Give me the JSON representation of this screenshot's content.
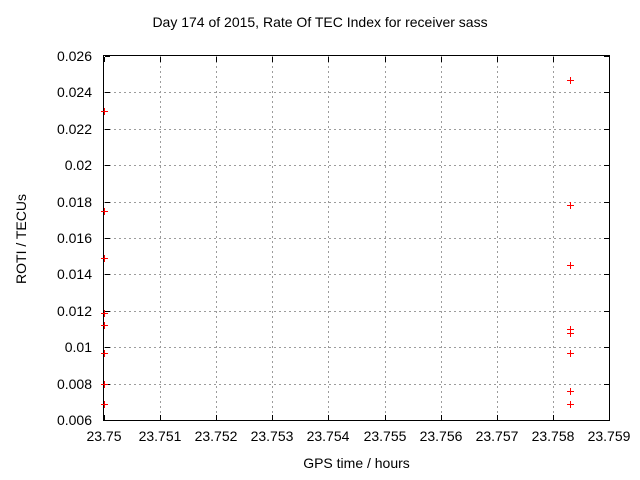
{
  "title": "Day 174 of 2015, Rate Of TEC Index for receiver sass",
  "axes": {
    "xlabel": "GPS time / hours",
    "ylabel": "ROTI / TECUs"
  },
  "chart_data": {
    "type": "scatter",
    "title": "Day 174 of 2015, Rate Of TEC Index for receiver sass",
    "xlabel": "GPS time / hours",
    "ylabel": "ROTI / TECUs",
    "xlim": [
      23.75,
      23.759
    ],
    "ylim": [
      0.006,
      0.026
    ],
    "x_tick_values": [
      23.75,
      23.751,
      23.752,
      23.753,
      23.754,
      23.755,
      23.756,
      23.757,
      23.758,
      23.759
    ],
    "x_tick_labels": [
      "23.75",
      "23.751",
      "23.752",
      "23.753",
      "23.754",
      "23.755",
      "23.756",
      "23.757",
      "23.758",
      "23.759"
    ],
    "y_tick_values": [
      0.006,
      0.008,
      0.01,
      0.012,
      0.014,
      0.016,
      0.018,
      0.02,
      0.022,
      0.024,
      0.026
    ],
    "y_tick_labels": [
      "0.006",
      "0.008",
      "0.01",
      "0.012",
      "0.014",
      "0.016",
      "0.018",
      "0.02",
      "0.022",
      "0.024",
      "0.026"
    ],
    "grid": true,
    "legend": "none",
    "marker": "plus",
    "marker_color": "#ff0000",
    "series": [
      {
        "name": "ROTI",
        "points": [
          [
            23.75,
            0.023
          ],
          [
            23.75,
            0.0175
          ],
          [
            23.75,
            0.0149
          ],
          [
            23.75,
            0.0119
          ],
          [
            23.75,
            0.0112
          ],
          [
            23.75,
            0.0097
          ],
          [
            23.75,
            0.008
          ],
          [
            23.75,
            0.0069
          ],
          [
            23.7583,
            0.0247
          ],
          [
            23.7583,
            0.0178
          ],
          [
            23.7583,
            0.0145
          ],
          [
            23.7583,
            0.011
          ],
          [
            23.7583,
            0.0108
          ],
          [
            23.7583,
            0.0097
          ],
          [
            23.7583,
            0.0076
          ],
          [
            23.7583,
            0.0069
          ]
        ]
      }
    ]
  }
}
